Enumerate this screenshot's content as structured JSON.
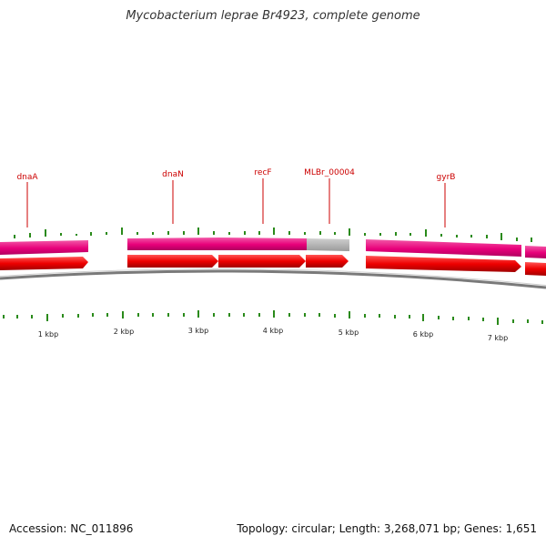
{
  "title": "Mycobacterium leprae Br4923, complete genome",
  "footer": {
    "accession": "Accession: NC_011896",
    "stats": "Topology: circular; Length: 3,268,071 bp; Genes: 1,651"
  },
  "genes": [
    {
      "name": "dnaA"
    },
    {
      "name": "dnaN"
    },
    {
      "name": "recF"
    },
    {
      "name": "MLBr_00004"
    },
    {
      "name": "gyrB"
    }
  ],
  "scale_labels": [
    "1 kbp",
    "2 kbp",
    "3 kbp",
    "4 kbp",
    "5 kbp",
    "6 kbp",
    "7 kbp"
  ],
  "colors": {
    "cds_forward": "#e8007a",
    "cds_arrow": "#ee0000",
    "gene_label": "#cc0000",
    "unlabeled_feature": "#bbbbbb",
    "gc_ticks": "#2a8a1a",
    "backbone": "#888888"
  }
}
